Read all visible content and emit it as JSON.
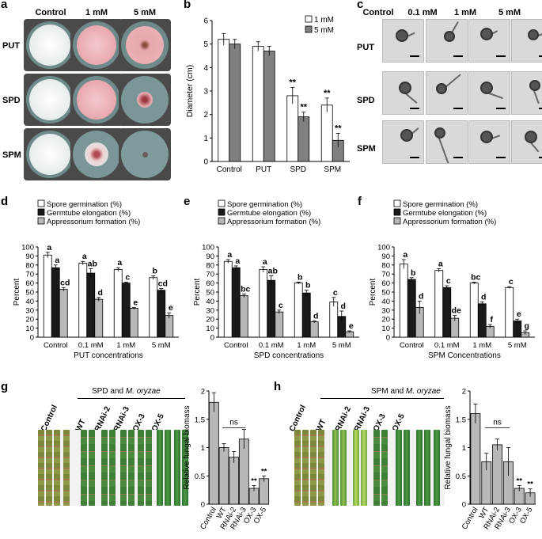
{
  "panels": {
    "a": "a",
    "b": "b",
    "c": "c",
    "d": "d",
    "e": "e",
    "f": "f",
    "g": "g",
    "h": "h"
  },
  "a": {
    "cols": [
      "Control",
      "1 mM",
      "5 mM"
    ],
    "rows": [
      "PUT",
      "SPD",
      "SPM"
    ]
  },
  "c": {
    "cols": [
      "Control",
      "0.1 mM",
      "1 mM",
      "5 mM"
    ],
    "rows": [
      "PUT",
      "SPD",
      "SPM"
    ]
  },
  "g": {
    "treatment": "SPD and",
    "pathogen": "M. oryzae",
    "lanes": [
      "Control",
      "WT",
      "RNAi-2",
      "RNAi-3",
      "OX-3",
      "OX-5"
    ]
  },
  "h": {
    "treatment": "SPM and",
    "pathogen": "M. oryzae",
    "lanes": [
      "Control",
      "WT",
      "RNAi-2",
      "RNAi-3",
      "OX-3",
      "OX-5"
    ]
  },
  "colors": {
    "white": "#ffffff",
    "gray": "#808080",
    "black": "#1a1a1a",
    "light": "#b8b8b8"
  },
  "chart_data": [
    {
      "id": "b",
      "type": "bar",
      "categories": [
        "Control",
        "PUT",
        "SPD",
        "SPM"
      ],
      "series": [
        {
          "name": "1 mM",
          "values": [
            5.2,
            4.9,
            2.8,
            2.4
          ],
          "err": [
            0.25,
            0.2,
            0.35,
            0.3
          ],
          "sig": [
            "",
            "",
            "**",
            "**"
          ]
        },
        {
          "name": "5 mM",
          "values": [
            5.0,
            4.7,
            1.9,
            0.9
          ],
          "err": [
            0.2,
            0.2,
            0.2,
            0.3
          ],
          "sig": [
            "",
            "",
            "**",
            "**"
          ]
        }
      ],
      "ylabel": "Diameter (cm)",
      "ylim": [
        0,
        6
      ],
      "yticks": [
        0,
        1,
        2,
        3,
        4,
        5,
        6
      ],
      "legend": "top-right"
    },
    {
      "id": "d",
      "type": "bar",
      "categories": [
        "Control",
        "0.1 mM",
        "1 mM",
        "5 mM"
      ],
      "series": [
        {
          "name": "Spore germination (%)",
          "values": [
            91,
            82,
            75,
            66
          ],
          "err": [
            3,
            2,
            2,
            2
          ],
          "sig": [
            "a",
            "a",
            "a",
            "b"
          ]
        },
        {
          "name": "Germtube elongation (%)",
          "values": [
            77,
            71,
            60,
            52
          ],
          "err": [
            3,
            5,
            1,
            2
          ],
          "sig": [
            "a",
            "ab",
            "c",
            "cd"
          ]
        },
        {
          "name": "Appressorium formation (%)",
          "values": [
            53,
            42,
            32,
            24
          ],
          "err": [
            2,
            2,
            1,
            3
          ],
          "sig": [
            "cd",
            "d",
            "e",
            "e"
          ]
        }
      ],
      "xlabel": "PUT concentrations",
      "ylabel": "Percent",
      "ylim": [
        0,
        100
      ],
      "yticks": [
        0,
        10,
        20,
        30,
        40,
        50,
        60,
        70,
        80,
        90,
        100
      ]
    },
    {
      "id": "e",
      "type": "bar",
      "categories": [
        "Control",
        "0.1 mM",
        "1 mM",
        "5 mM"
      ],
      "series": [
        {
          "name": "Spore germination (%)",
          "values": [
            84,
            75,
            60,
            39
          ],
          "err": [
            2,
            3,
            1,
            5
          ],
          "sig": [
            "a",
            "a",
            "b",
            "c"
          ]
        },
        {
          "name": "Germtube elongation (%)",
          "values": [
            77,
            63,
            49,
            23
          ],
          "err": [
            2,
            5,
            3,
            6
          ],
          "sig": [
            "a",
            "ab",
            "b",
            "d"
          ]
        },
        {
          "name": "Appressorium formation (%)",
          "values": [
            46,
            28,
            17,
            6
          ],
          "err": [
            2,
            2,
            1,
            1
          ],
          "sig": [
            "bc",
            "c",
            "d",
            "e"
          ]
        }
      ],
      "xlabel": "SPD concentrations",
      "ylabel": "Percent",
      "ylim": [
        0,
        100
      ],
      "yticks": [
        0,
        10,
        20,
        30,
        40,
        50,
        60,
        70,
        80,
        90,
        100
      ]
    },
    {
      "id": "f",
      "type": "bar",
      "categories": [
        "Control",
        "0.1 mM",
        "1 mM",
        "5 mM"
      ],
      "series": [
        {
          "name": "Spore germination (%)",
          "values": [
            81,
            74,
            60,
            55
          ],
          "err": [
            5,
            2,
            1,
            1
          ],
          "sig": [
            "a",
            "a",
            "bc",
            "c"
          ]
        },
        {
          "name": "Germtube elongation (%)",
          "values": [
            64,
            55,
            37,
            18
          ],
          "err": [
            2,
            2,
            2,
            2
          ],
          "sig": [
            "b",
            "c",
            "d",
            "e"
          ]
        },
        {
          "name": "Appressorium formation (%)",
          "values": [
            33,
            21,
            12,
            5
          ],
          "err": [
            7,
            3,
            2,
            2
          ],
          "sig": [
            "d",
            "de",
            "f",
            "g"
          ]
        }
      ],
      "xlabel": "SPM Concentrations",
      "ylabel": "Percent",
      "ylim": [
        0,
        100
      ],
      "yticks": [
        0,
        10,
        20,
        30,
        40,
        50,
        60,
        70,
        80,
        90,
        100
      ]
    },
    {
      "id": "g",
      "type": "bar",
      "categories": [
        "Control",
        "WT",
        "RNAi-2",
        "RNAi-3",
        "OX-3",
        "OX-5"
      ],
      "series": [
        {
          "values": [
            1.8,
            1.0,
            0.83,
            1.15,
            0.28,
            0.45
          ],
          "err": [
            0.17,
            0.07,
            0.1,
            0.17,
            0.05,
            0.05
          ],
          "sig": [
            "",
            "",
            "",
            "",
            "**",
            "**"
          ]
        }
      ],
      "ylabel": "Relative fungal biomass",
      "ylim": [
        0,
        2
      ],
      "yticks": [
        0,
        0.5,
        1,
        1.5,
        2
      ],
      "annotation": "ns"
    },
    {
      "id": "h",
      "type": "bar",
      "categories": [
        "Control",
        "WT",
        "RNAi-2",
        "RNAi-3",
        "OX-3",
        "OX-5"
      ],
      "series": [
        {
          "values": [
            1.6,
            0.75,
            1.05,
            0.75,
            0.28,
            0.2
          ],
          "err": [
            0.17,
            0.15,
            0.1,
            0.25,
            0.05,
            0.07
          ],
          "sig": [
            "",
            "",
            "",
            "",
            "**",
            "**"
          ]
        }
      ],
      "ylabel": "Relative fungal biomass",
      "ylim": [
        0,
        2
      ],
      "yticks": [
        0,
        0.5,
        1,
        1.5,
        2
      ],
      "annotation": "ns"
    }
  ]
}
